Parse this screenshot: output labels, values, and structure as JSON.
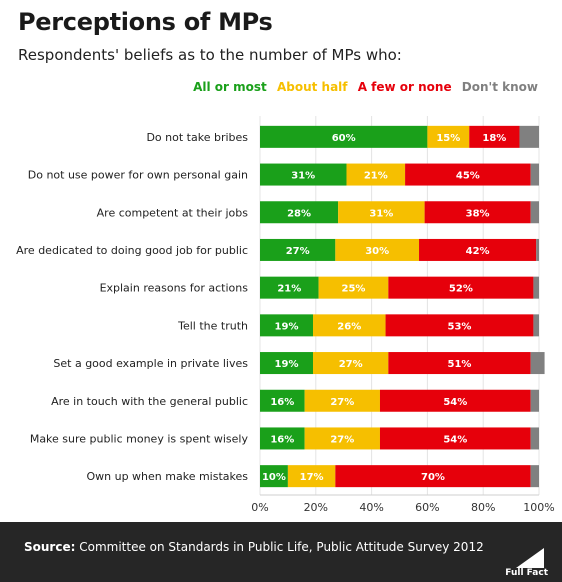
{
  "header": {
    "title": "Perceptions of MPs",
    "subtitle": "Respondents' beliefs as to the number of MPs who:"
  },
  "colors": {
    "all_or_most": "#1aa01a",
    "about_half": "#f6bf00",
    "few_or_none": "#e6000b",
    "dont_know": "#808080"
  },
  "chart_data": {
    "type": "bar",
    "orientation": "horizontal",
    "stacked": true,
    "categories": [
      "Do not take bribes",
      "Do not use power for own personal gain",
      "Are competent at their jobs",
      "Are dedicated to doing good job for public",
      "Explain reasons for actions",
      "Tell the truth",
      "Set a good example in private lives",
      "Are in touch with the general public",
      "Make sure public money is spent wisely",
      "Own up when make mistakes"
    ],
    "series": [
      {
        "name": "All or most",
        "values": [
          60,
          31,
          28,
          27,
          21,
          19,
          19,
          16,
          16,
          10
        ]
      },
      {
        "name": "About half",
        "values": [
          15,
          21,
          31,
          30,
          25,
          26,
          27,
          27,
          27,
          17
        ]
      },
      {
        "name": "A few or none",
        "values": [
          18,
          45,
          38,
          42,
          52,
          53,
          51,
          54,
          54,
          70
        ]
      },
      {
        "name": "Don't know",
        "values": [
          7,
          3,
          3,
          1,
          2,
          2,
          5,
          3,
          3,
          3
        ]
      }
    ],
    "data_labels": [
      [
        "60%",
        "31%",
        "28%",
        "27%",
        "21%",
        "19%",
        "19%",
        "16%",
        "16%",
        "10%"
      ],
      [
        "15%",
        "21%",
        "31%",
        "30%",
        "25%",
        "26%",
        "27%",
        "27%",
        "27%",
        "17%"
      ],
      [
        "18%",
        "45%",
        "38%",
        "42%",
        "52%",
        "53%",
        "51%",
        "54%",
        "54%",
        "70%"
      ]
    ],
    "xlim": [
      0,
      100
    ],
    "x_ticks": [
      "0%",
      "20%",
      "40%",
      "60%",
      "80%",
      "100%"
    ],
    "legend_position": "top-right",
    "grid": true
  },
  "footer": {
    "source_label": "Source:",
    "source_text": "Committee on Standards in Public Life, Public Attitude Survey 2012",
    "logo_text": "Full Fact"
  }
}
